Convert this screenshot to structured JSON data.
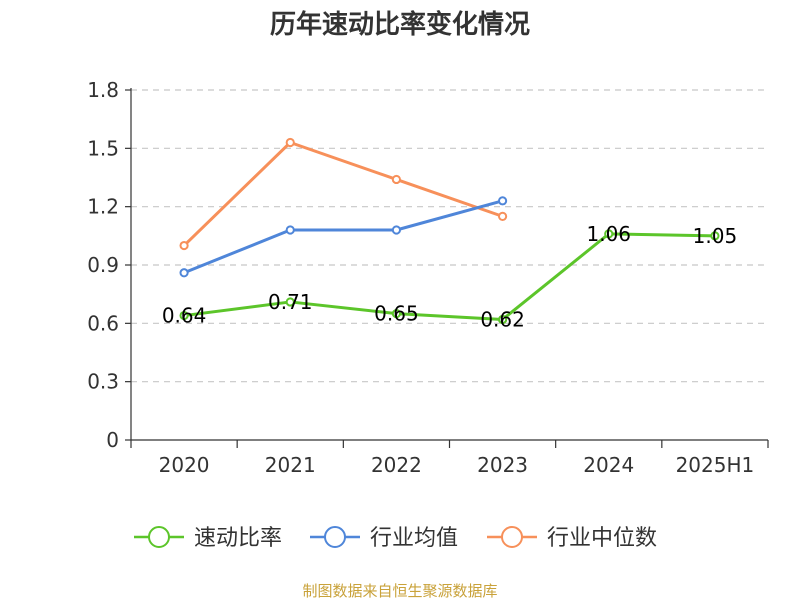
{
  "chart_data": {
    "type": "line",
    "title": "历年速动比率变化情况",
    "xlabel": "",
    "ylabel": "",
    "categories": [
      "2020",
      "2021",
      "2022",
      "2023",
      "2024",
      "2025H1"
    ],
    "ylim": [
      0,
      1.8
    ],
    "yticks": [
      "0",
      "0.3",
      "0.6",
      "0.9",
      "1.2",
      "1.5",
      "1.8"
    ],
    "grid": true,
    "legend_position": "bottom",
    "series": [
      {
        "name": "速动比率",
        "color": "#5cc52a",
        "values": [
          0.64,
          0.71,
          0.65,
          0.62,
          1.06,
          1.05
        ],
        "show_labels": true,
        "labels": [
          "0.64",
          "0.71",
          "0.65",
          "0.62",
          "1.06",
          "1.05"
        ]
      },
      {
        "name": "行业均值",
        "color": "#4f86d9",
        "values": [
          0.86,
          1.08,
          1.08,
          1.23,
          null,
          null
        ],
        "show_labels": false
      },
      {
        "name": "行业中位数",
        "color": "#f7905a",
        "values": [
          1.0,
          1.53,
          1.34,
          1.15,
          null,
          null
        ],
        "show_labels": false
      }
    ],
    "source": "制图数据来自恒生聚源数据库"
  }
}
